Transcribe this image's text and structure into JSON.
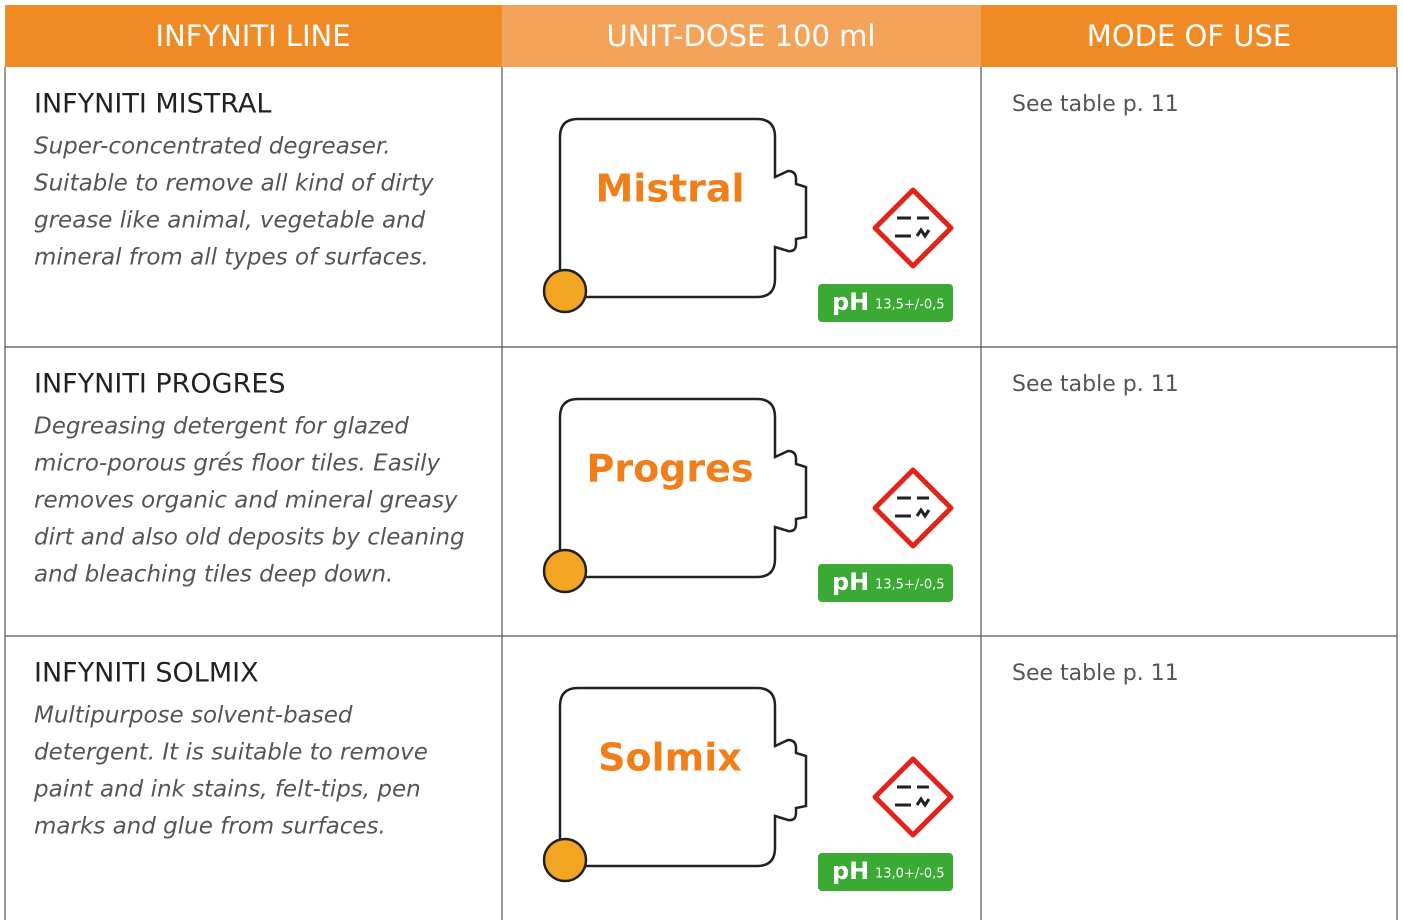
{
  "header": {
    "columns": [
      "INFYNITI LINE",
      "UNIT-DOSE 100 ml",
      "MODE OF USE"
    ]
  },
  "rows": [
    {
      "name": "INFYNITI MISTRAL",
      "description": [
        "Super-concentrated degreaser.",
        "Suitable to remove all kind of dirty",
        "grease like animal, vegetable and",
        "mineral from all types of surfaces."
      ],
      "label": "Mistral",
      "ph_label": "pH",
      "ph_value": "13,5+/-0,5",
      "mode": "See table p. 11"
    },
    {
      "name": "INFYNITI PROGRES",
      "description": [
        "Degreasing detergent for glazed",
        "micro-porous grés floor tiles. Easily",
        "removes organic and mineral greasy",
        "dirt and also old deposits by cleaning",
        "and bleaching tiles deep down."
      ],
      "label": "Progres",
      "ph_label": "pH",
      "ph_value": "13,5+/-0,5",
      "mode": "See table p. 11"
    },
    {
      "name": "INFYNITI SOLMIX",
      "description": [
        "Multipurpose solvent-based",
        "detergent. It is suitable to remove",
        "paint and ink stains, felt-tips, pen",
        "marks and glue from surfaces."
      ],
      "label": "Solmix",
      "ph_label": "pH",
      "ph_value": "13,0+/-0,5",
      "mode": "See table p. 11"
    }
  ]
}
